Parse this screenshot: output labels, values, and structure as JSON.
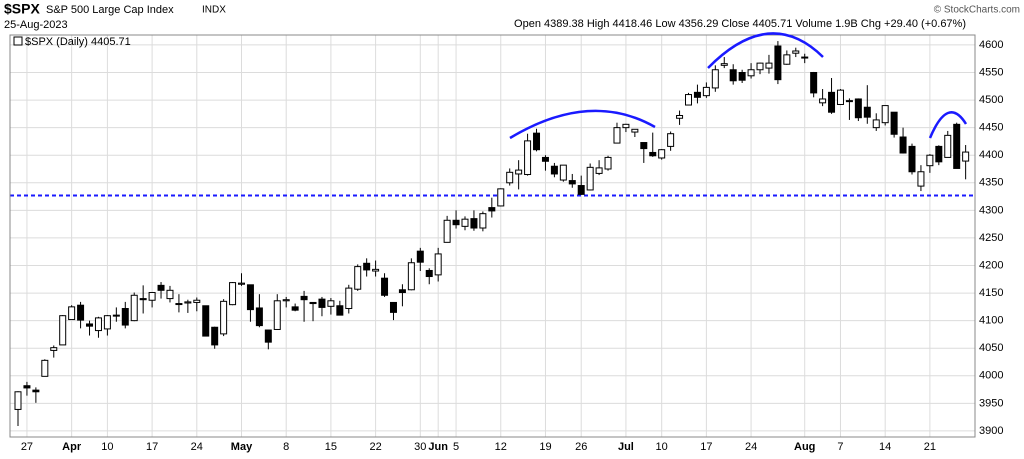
{
  "header": {
    "symbol": "$SPX",
    "name": "S&P 500 Large Cap Index",
    "exchange": "INDX",
    "date": "25-Aug-2023",
    "quote": "Open 4389.38  High 4418.46  Low 4356.29  Close 4405.71  Volume 1.9B  Chg +29.40 (+0.67%)",
    "credit": "© StockCharts.com"
  },
  "chart_data": {
    "type": "candlestick",
    "legend": "$SPX (Daily) 4405.71",
    "grid": true,
    "x": [
      "2023-03-24",
      "2023-03-27",
      "2023-03-28",
      "2023-03-29",
      "2023-03-30",
      "2023-03-31",
      "2023-04-03",
      "2023-04-04",
      "2023-04-05",
      "2023-04-06",
      "2023-04-10",
      "2023-04-11",
      "2023-04-12",
      "2023-04-13",
      "2023-04-14",
      "2023-04-17",
      "2023-04-18",
      "2023-04-19",
      "2023-04-20",
      "2023-04-21",
      "2023-04-24",
      "2023-04-25",
      "2023-04-26",
      "2023-04-27",
      "2023-04-28",
      "2023-05-01",
      "2023-05-02",
      "2023-05-03",
      "2023-05-04",
      "2023-05-05",
      "2023-05-08",
      "2023-05-09",
      "2023-05-10",
      "2023-05-11",
      "2023-05-12",
      "2023-05-15",
      "2023-05-16",
      "2023-05-17",
      "2023-05-18",
      "2023-05-19",
      "2023-05-22",
      "2023-05-23",
      "2023-05-24",
      "2023-05-25",
      "2023-05-26",
      "2023-05-30",
      "2023-05-31",
      "2023-06-01",
      "2023-06-02",
      "2023-06-05",
      "2023-06-06",
      "2023-06-07",
      "2023-06-08",
      "2023-06-09",
      "2023-06-12",
      "2023-06-13",
      "2023-06-14",
      "2023-06-15",
      "2023-06-16",
      "2023-06-20",
      "2023-06-21",
      "2023-06-22",
      "2023-06-23",
      "2023-06-26",
      "2023-06-27",
      "2023-06-28",
      "2023-06-29",
      "2023-06-30",
      "2023-07-03",
      "2023-07-05",
      "2023-07-06",
      "2023-07-07",
      "2023-07-10",
      "2023-07-11",
      "2023-07-12",
      "2023-07-13",
      "2023-07-14",
      "2023-07-17",
      "2023-07-18",
      "2023-07-19",
      "2023-07-20",
      "2023-07-21",
      "2023-07-24",
      "2023-07-25",
      "2023-07-26",
      "2023-07-27",
      "2023-07-28",
      "2023-07-31",
      "2023-08-01",
      "2023-08-02",
      "2023-08-03",
      "2023-08-04",
      "2023-08-07",
      "2023-08-08",
      "2023-08-09",
      "2023-08-10",
      "2023-08-11",
      "2023-08-14",
      "2023-08-15",
      "2023-08-16",
      "2023-08-17",
      "2023-08-18",
      "2023-08-21",
      "2023-08-22",
      "2023-08-23",
      "2023-08-24",
      "2023-08-25"
    ],
    "open": [
      3939,
      3982,
      3974,
      3999,
      4046,
      4056,
      4102,
      4128,
      4094,
      4082,
      4085,
      4110,
      4122,
      4100,
      4140,
      4137,
      4164,
      4140,
      4131,
      4132,
      4133,
      4127,
      4088,
      4076,
      4129,
      4166,
      4165,
      4123,
      4083,
      4084,
      4136,
      4125,
      4144,
      4133,
      4139,
      4126,
      4127,
      4122,
      4157,
      4204,
      4190,
      4177,
      4133,
      4156,
      4156,
      4226,
      4191,
      4183,
      4242,
      4282,
      4271,
      4285,
      4268,
      4305,
      4308,
      4350,
      4366,
      4365,
      4440,
      4396,
      4380,
      4355,
      4354,
      4345,
      4337,
      4367,
      4375,
      4422,
      4450,
      4442,
      4423,
      4405,
      4395,
      4416,
      4467,
      4491,
      4514,
      4508,
      4522,
      4563,
      4555,
      4550,
      4544,
      4555,
      4558,
      4598,
      4565,
      4585,
      4578,
      4550,
      4495,
      4514,
      4492,
      4498,
      4502,
      4487,
      4450,
      4459,
      4478,
      4433,
      4416,
      4344,
      4381,
      4416,
      4396,
      4456,
      4389.38
    ],
    "high": [
      3972,
      3989,
      3979,
      4030,
      4055,
      4110,
      4128,
      4134,
      4100,
      4107,
      4110,
      4124,
      4134,
      4151,
      4164,
      4152,
      4170,
      4163,
      4148,
      4138,
      4142,
      4127,
      4089,
      4139,
      4170,
      4186,
      4165,
      4148,
      4083,
      4148,
      4143,
      4131,
      4154,
      4133,
      4143,
      4141,
      4136,
      4165,
      4202,
      4213,
      4209,
      4186,
      4133,
      4166,
      4213,
      4232,
      4195,
      4232,
      4290,
      4300,
      4289,
      4300,
      4298,
      4323,
      4340,
      4376,
      4391,
      4439,
      4448,
      4400,
      4386,
      4382,
      4366,
      4363,
      4385,
      4391,
      4399,
      4459,
      4457,
      4447,
      4423,
      4441,
      4411,
      4443,
      4481,
      4513,
      4528,
      4532,
      4563,
      4578,
      4565,
      4555,
      4567,
      4568,
      4582,
      4607,
      4590,
      4595,
      4584,
      4551,
      4520,
      4540,
      4520,
      4503,
      4503,
      4527,
      4476,
      4490,
      4478,
      4450,
      4421,
      4382,
      4402,
      4418,
      4444,
      4459,
      4418.46
    ],
    "low": [
      3909,
      3964,
      3951,
      3999,
      4033,
      4056,
      4102,
      4086,
      4073,
      4069,
      4073,
      4098,
      4086,
      4099,
      4113,
      4124,
      4140,
      4133,
      4115,
      4114,
      4117,
      4072,
      4049,
      4072,
      4128,
      4163,
      4098,
      4088,
      4048,
      4084,
      4124,
      4117,
      4098,
      4099,
      4108,
      4111,
      4110,
      4113,
      4154,
      4180,
      4180,
      4143,
      4101,
      4126,
      4155,
      4190,
      4166,
      4171,
      4242,
      4267,
      4264,
      4263,
      4262,
      4287,
      4307,
      4345,
      4338,
      4363,
      4407,
      4372,
      4360,
      4352,
      4341,
      4328,
      4336,
      4364,
      4372,
      4422,
      4442,
      4433,
      4386,
      4397,
      4392,
      4408,
      4455,
      4491,
      4494,
      4504,
      4515,
      4558,
      4528,
      4531,
      4539,
      4547,
      4548,
      4529,
      4564,
      4578,
      4567,
      4505,
      4489,
      4475,
      4491,
      4464,
      4462,
      4457,
      4444,
      4454,
      4432,
      4403,
      4365,
      4335,
      4368,
      4382,
      4396,
      4376,
      4356.29
    ],
    "close": [
      3971,
      3978,
      3971,
      4028,
      4051,
      4109,
      4125,
      4101,
      4090,
      4105,
      4109,
      4109,
      4092,
      4146,
      4138,
      4151,
      4155,
      4155,
      4130,
      4134,
      4137,
      4072,
      4056,
      4135,
      4169,
      4168,
      4120,
      4091,
      4061,
      4136,
      4138,
      4119,
      4138,
      4131,
      4124,
      4136,
      4110,
      4159,
      4198,
      4192,
      4193,
      4146,
      4115,
      4151,
      4205,
      4206,
      4180,
      4221,
      4282,
      4274,
      4284,
      4268,
      4294,
      4299,
      4339,
      4369,
      4373,
      4426,
      4410,
      4389,
      4366,
      4382,
      4348,
      4329,
      4378,
      4377,
      4396,
      4450,
      4456,
      4447,
      4412,
      4399,
      4410,
      4439,
      4472,
      4510,
      4505,
      4523,
      4555,
      4566,
      4535,
      4536,
      4555,
      4567,
      4567,
      4537,
      4582,
      4589,
      4577,
      4513,
      4502,
      4478,
      4518,
      4499,
      4468,
      4469,
      4464,
      4490,
      4438,
      4404,
      4370,
      4370,
      4400,
      4388,
      4436,
      4376,
      4405.71
    ],
    "support": 4327,
    "ylim": [
      3889,
      4618
    ],
    "yticks": [
      3900,
      3950,
      4000,
      4050,
      4100,
      4150,
      4200,
      4250,
      4300,
      4350,
      4400,
      4450,
      4500,
      4550,
      4600
    ],
    "xticks": [
      {
        "value": "2023-03-27",
        "label": "27"
      },
      {
        "value": "2023-04-03",
        "label": "Apr"
      },
      {
        "value": "2023-04-10",
        "label": "10"
      },
      {
        "value": "2023-04-17",
        "label": "17"
      },
      {
        "value": "2023-04-24",
        "label": "24"
      },
      {
        "value": "2023-05-01",
        "label": "May"
      },
      {
        "value": "2023-05-08",
        "label": "8"
      },
      {
        "value": "2023-05-15",
        "label": "15"
      },
      {
        "value": "2023-05-22",
        "label": "22"
      },
      {
        "value": "2023-05-30",
        "label": "30"
      },
      {
        "value": "2023-06-01",
        "label": "Jun"
      },
      {
        "value": "2023-06-05",
        "label": "5"
      },
      {
        "value": "2023-06-12",
        "label": "12"
      },
      {
        "value": "2023-06-20",
        "label": "19"
      },
      {
        "value": "2023-06-26",
        "label": "26"
      },
      {
        "value": "2023-07-03",
        "label": "Jul"
      },
      {
        "value": "2023-07-10",
        "label": "10"
      },
      {
        "value": "2023-07-17",
        "label": "17"
      },
      {
        "value": "2023-07-24",
        "label": "24"
      },
      {
        "value": "2023-08-01",
        "label": "Aug"
      },
      {
        "value": "2023-08-07",
        "label": "7"
      },
      {
        "value": "2023-08-14",
        "label": "14"
      },
      {
        "value": "2023-08-21",
        "label": "21"
      }
    ]
  }
}
